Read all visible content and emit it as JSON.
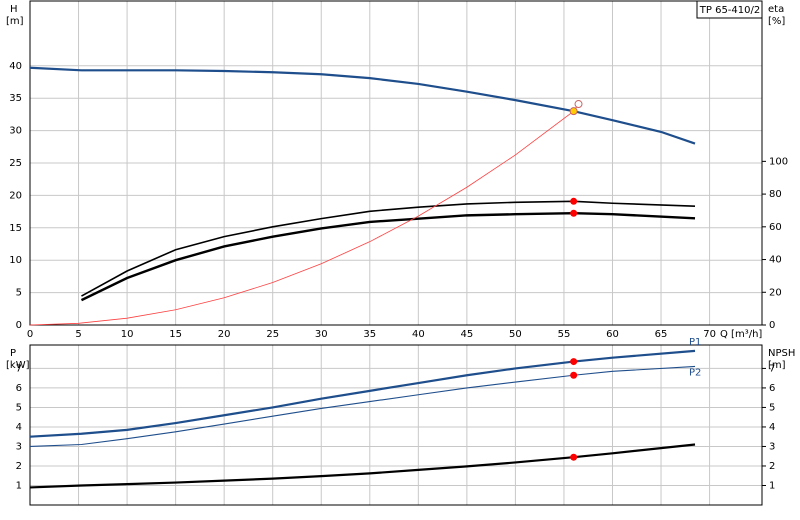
{
  "chart_data": [
    {
      "type": "line",
      "title": "TP 65-410/2",
      "ylabel": "H",
      "yunit": "[m]",
      "y2label": "eta",
      "y2unit": "[%]",
      "xlabel": "Q [m³/h]",
      "xlim": [
        0,
        75.4
      ],
      "xticks": [
        0,
        5,
        10,
        15,
        20,
        25,
        30,
        35,
        40,
        45,
        50,
        55,
        60,
        65,
        70
      ],
      "ylim": [
        0,
        50
      ],
      "yticks": [
        0,
        5,
        10,
        15,
        20,
        25,
        30,
        35,
        40
      ],
      "y2lim": [
        0,
        198
      ],
      "y2ticks": [
        0,
        20,
        40,
        60,
        80,
        100
      ],
      "grid": true,
      "series": [
        {
          "color": "#1f4e8c",
          "line_width": 2.2,
          "x": [
            0,
            5.3,
            10,
            15,
            20,
            25,
            30,
            35,
            40,
            45,
            50,
            56,
            60,
            65,
            68.5
          ],
          "values": [
            39.7,
            39.3,
            39.3,
            39.3,
            39.2,
            39.0,
            38.7,
            38.1,
            37.2,
            36.0,
            34.7,
            33.0,
            31.6,
            29.8,
            28.0
          ]
        },
        {
          "color": "#000000",
          "line_width": 1.6,
          "axis": "y2",
          "x": [
            5.3,
            10,
            15,
            20,
            25,
            30,
            35,
            40,
            45,
            50,
            56,
            60,
            68.5
          ],
          "values": [
            17.7,
            33,
            46,
            54,
            60,
            65,
            69.5,
            72,
            74,
            75,
            75.6,
            74.4,
            72.6
          ]
        },
        {
          "color": "#000000",
          "line_width": 2.4,
          "axis": "y2",
          "x": [
            5.3,
            10,
            15,
            20,
            25,
            30,
            35,
            40,
            45,
            50,
            56,
            60,
            68.5
          ],
          "values": [
            15.2,
            28.7,
            39.6,
            48,
            54,
            59,
            63,
            65,
            67,
            67.7,
            68.3,
            67.7,
            65.2
          ]
        },
        {
          "color": "#ff4040",
          "line_width": 0.8,
          "x": [
            0,
            5,
            10,
            15,
            20,
            25,
            30,
            35,
            40,
            45,
            50,
            56,
            56.5
          ],
          "values": [
            0,
            0.26,
            1.05,
            2.36,
            4.2,
            6.56,
            9.45,
            12.86,
            16.8,
            21.26,
            26.25,
            33.0,
            34.1
          ]
        }
      ],
      "points": [
        {
          "x": 56,
          "value": 75.6,
          "axis": "y2",
          "color": "#ff0000"
        },
        {
          "x": 56,
          "value": 68.3,
          "axis": "y2",
          "color": "#ff0000"
        },
        {
          "x": 56,
          "value": 33.0,
          "color": "#ffcc00"
        },
        {
          "x": 56.5,
          "value": 34.1,
          "color": "#ffffff"
        }
      ]
    },
    {
      "type": "line",
      "ylabel": "P",
      "yunit": "[kW]",
      "y2label": "NPSH",
      "y2unit": "[m]",
      "xlim": [
        0,
        75.4
      ],
      "ylim": [
        0,
        8.2
      ],
      "yticks": [
        1,
        2,
        3,
        4,
        5,
        6,
        7
      ],
      "y2lim": [
        0,
        8.2
      ],
      "y2ticks": [
        1,
        2,
        3,
        4,
        5,
        6,
        7
      ],
      "grid": true,
      "series": [
        {
          "name": "P1",
          "color": "#1f4e8c",
          "line_width": 2.2,
          "x": [
            0,
            5.3,
            10,
            15,
            20,
            25,
            30,
            35,
            40,
            45,
            50,
            56,
            60,
            68.5
          ],
          "values": [
            3.5,
            3.65,
            3.85,
            4.2,
            4.6,
            5.0,
            5.45,
            5.85,
            6.25,
            6.65,
            7.0,
            7.35,
            7.55,
            7.9
          ]
        },
        {
          "name": "P2",
          "color": "#1f4e8c",
          "line_width": 1.1,
          "x": [
            0,
            5.3,
            10,
            15,
            20,
            25,
            30,
            35,
            40,
            45,
            50,
            56,
            60,
            68.5
          ],
          "values": [
            3.0,
            3.1,
            3.4,
            3.75,
            4.15,
            4.55,
            4.95,
            5.3,
            5.65,
            6.0,
            6.3,
            6.65,
            6.85,
            7.1
          ]
        },
        {
          "color": "#000000",
          "line_width": 2.2,
          "axis": "y2",
          "x": [
            0,
            5.3,
            10,
            15,
            20,
            25,
            30,
            35,
            40,
            45,
            50,
            56,
            60,
            68.5
          ],
          "values": [
            0.9,
            1.0,
            1.07,
            1.15,
            1.25,
            1.35,
            1.48,
            1.62,
            1.8,
            1.98,
            2.18,
            2.45,
            2.65,
            3.1
          ]
        }
      ],
      "points": [
        {
          "x": 56,
          "value": 7.35,
          "color": "#ff0000"
        },
        {
          "x": 56,
          "value": 6.65,
          "color": "#ff0000"
        },
        {
          "x": 56,
          "value": 2.45,
          "axis": "y2",
          "color": "#ff0000"
        }
      ]
    }
  ]
}
